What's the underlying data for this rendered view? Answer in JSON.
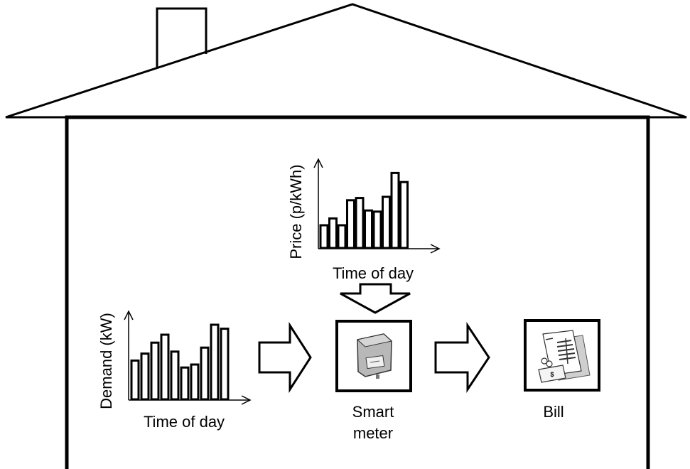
{
  "price_chart": {
    "ylabel": "Price (p/kWh)",
    "xlabel": "Time of day",
    "values": [
      2,
      2.6,
      2,
      4.2,
      4.4,
      3.3,
      3.2,
      4.5,
      6.6,
      5.8
    ]
  },
  "demand_chart": {
    "ylabel": "Demand (kW)",
    "xlabel": "Time of day",
    "values": [
      3.9,
      4.6,
      5.7,
      6.5,
      4.8,
      3.2,
      3.5,
      5.2,
      7.5,
      7.1
    ]
  },
  "smart_meter": {
    "label_line1": "Smart",
    "label_line2": "meter",
    "icon": "smart-meter-icon"
  },
  "bill": {
    "label": "Bill",
    "icon": "bill-icon"
  },
  "colors": {
    "stroke": "#000000",
    "background": "#ffffff",
    "meter_body": "#b8b8b8",
    "paper_shadow": "#cfcfcf"
  }
}
